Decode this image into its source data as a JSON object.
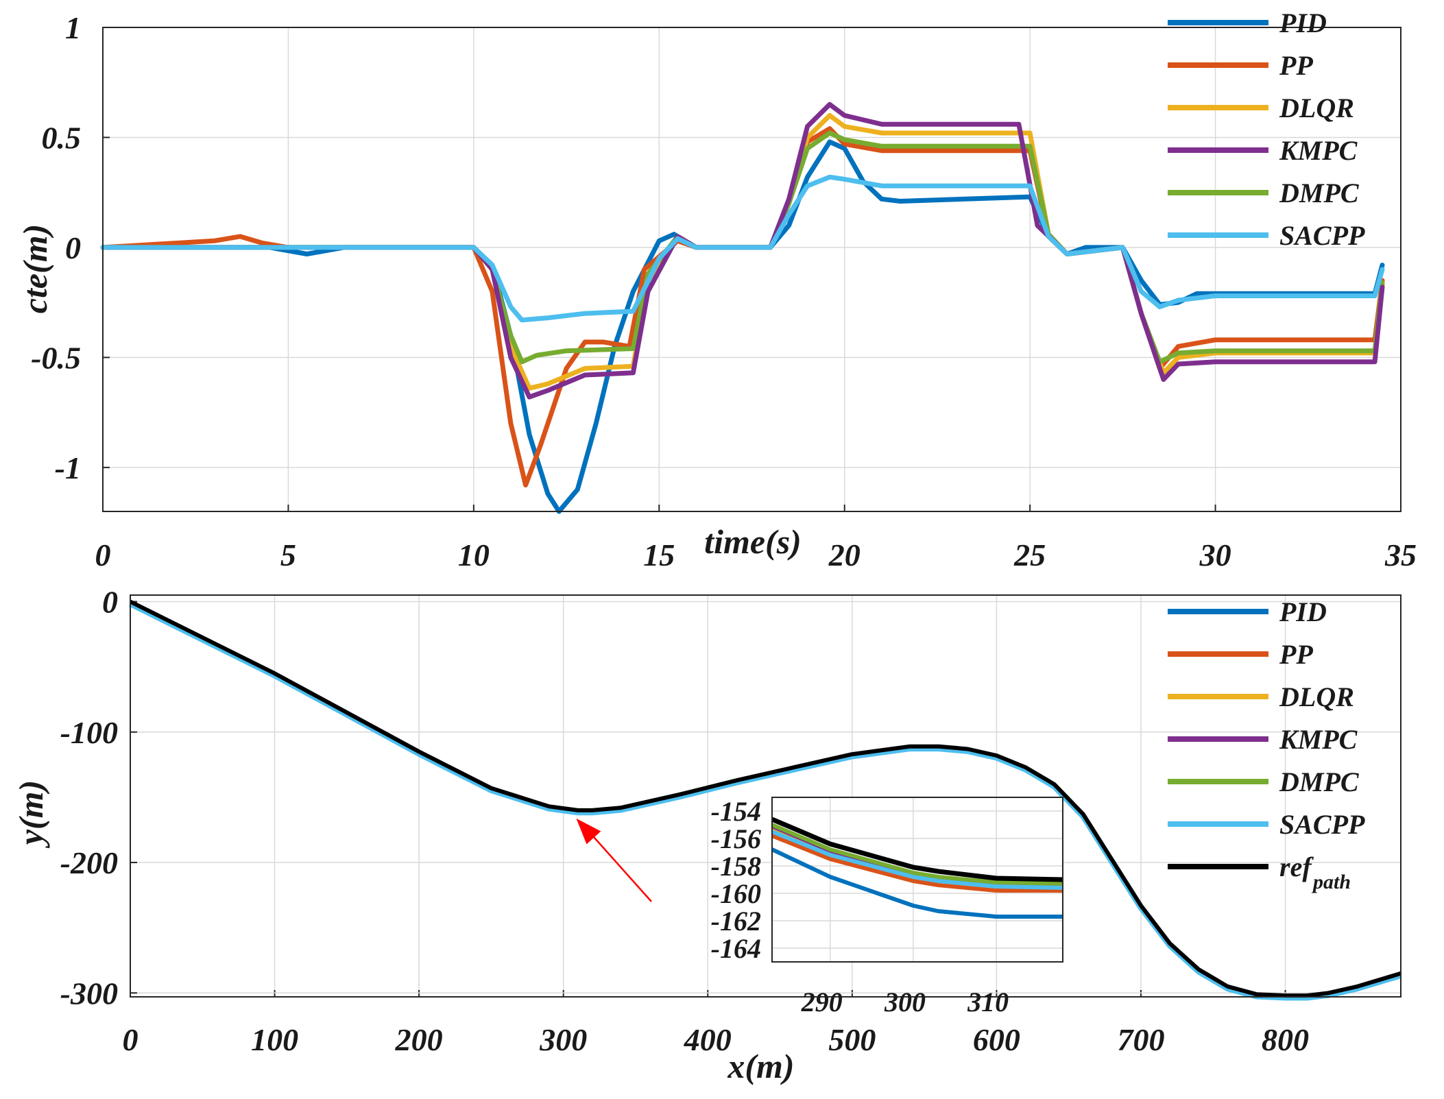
{
  "colors": {
    "PID": "#0072BD",
    "PP": "#D95319",
    "DLQR": "#EDB120",
    "KMPC": "#7E2F8E",
    "DMPC": "#77AC30",
    "SACPP": "#4DBEEE",
    "ref_path": "#000000",
    "arrow": "#FF0000"
  },
  "chart_data": [
    {
      "type": "line",
      "xlabel": "time(s)",
      "ylabel": "cte(m)",
      "xlim": [
        0,
        35
      ],
      "ylim": [
        -1.2,
        1
      ],
      "xticks": [
        "0",
        "5",
        "10",
        "15",
        "20",
        "25",
        "30",
        "35"
      ],
      "yticks": [
        "1",
        "0.5",
        "0",
        "-0.5",
        "-1"
      ],
      "grid": true,
      "legend_position": "top-right",
      "series": [
        {
          "name": "PID",
          "x": [
            0,
            2,
            3.5,
            4.5,
            5.5,
            6.5,
            10,
            10.5,
            11,
            11.5,
            12,
            12.3,
            12.8,
            13.3,
            13.8,
            14.3,
            15,
            15.4,
            16,
            18,
            18.5,
            19,
            19.6,
            20,
            20.5,
            21,
            21.5,
            25,
            25.5,
            26,
            26.5,
            27.5,
            28,
            28.5,
            29,
            29.5,
            30,
            34.3,
            34.5
          ],
          "y": [
            0,
            0,
            0,
            0,
            -0.03,
            0,
            0,
            -0.08,
            -0.4,
            -0.85,
            -1.12,
            -1.2,
            -1.1,
            -0.8,
            -0.45,
            -0.2,
            0.03,
            0.06,
            0,
            0,
            0.1,
            0.32,
            0.48,
            0.45,
            0.3,
            0.22,
            0.21,
            0.23,
            0.05,
            -0.03,
            0,
            0,
            -0.15,
            -0.26,
            -0.25,
            -0.21,
            -0.21,
            -0.21,
            -0.08
          ]
        },
        {
          "name": "PP",
          "x": [
            0,
            3,
            3.7,
            4.3,
            5,
            10,
            10.5,
            11,
            11.4,
            11.8,
            12.5,
            13,
            13.5,
            14.2,
            14.6,
            15.5,
            16,
            18,
            18.5,
            19,
            19.6,
            20,
            21,
            25,
            25.5,
            26,
            27.5,
            28,
            28.5,
            29,
            30,
            34.3,
            34.5
          ],
          "y": [
            0,
            0.03,
            0.05,
            0.02,
            0,
            0,
            -0.2,
            -0.8,
            -1.08,
            -0.9,
            -0.55,
            -0.43,
            -0.43,
            -0.45,
            -0.1,
            0.03,
            0,
            0,
            0.2,
            0.48,
            0.54,
            0.47,
            0.44,
            0.44,
            0.05,
            -0.03,
            0,
            -0.3,
            -0.55,
            -0.45,
            -0.42,
            -0.42,
            -0.15
          ]
        },
        {
          "name": "DLQR",
          "x": [
            0,
            10,
            10.5,
            11,
            11.5,
            12,
            13,
            14.3,
            14.7,
            15.5,
            16,
            18,
            18.5,
            19,
            19.6,
            20,
            21,
            25,
            25.5,
            26,
            27.5,
            28,
            28.6,
            29,
            30,
            34.3,
            34.5
          ],
          "y": [
            0,
            0,
            -0.1,
            -0.45,
            -0.64,
            -0.62,
            -0.55,
            -0.54,
            -0.15,
            0.05,
            0,
            0,
            0.2,
            0.5,
            0.6,
            0.55,
            0.52,
            0.52,
            0.06,
            -0.03,
            0,
            -0.3,
            -0.57,
            -0.5,
            -0.48,
            -0.48,
            -0.17
          ]
        },
        {
          "name": "KMPC",
          "x": [
            0,
            10,
            10.5,
            11,
            11.5,
            12,
            13,
            14.3,
            14.7,
            15.5,
            16,
            18,
            18.5,
            19,
            19.6,
            20,
            21,
            24.7,
            25.2,
            26,
            27.5,
            28,
            28.6,
            29,
            30,
            34.3,
            34.5
          ],
          "y": [
            0,
            0,
            -0.1,
            -0.5,
            -0.68,
            -0.65,
            -0.58,
            -0.57,
            -0.2,
            0.05,
            0,
            0,
            0.22,
            0.55,
            0.65,
            0.6,
            0.56,
            0.56,
            0.1,
            -0.03,
            0,
            -0.3,
            -0.6,
            -0.53,
            -0.52,
            -0.52,
            -0.18
          ]
        },
        {
          "name": "DMPC",
          "x": [
            0,
            10,
            10.5,
            11,
            11.3,
            11.7,
            12.5,
            14.3,
            14.7,
            15.5,
            16,
            18,
            18.5,
            19,
            19.6,
            20,
            21,
            25,
            25.5,
            26,
            27.5,
            28,
            28.5,
            29,
            30,
            34.3,
            34.5
          ],
          "y": [
            0,
            0,
            -0.1,
            -0.4,
            -0.52,
            -0.49,
            -0.47,
            -0.46,
            -0.12,
            0.05,
            0,
            0,
            0.2,
            0.45,
            0.52,
            0.49,
            0.46,
            0.46,
            0.06,
            -0.03,
            0,
            -0.3,
            -0.52,
            -0.48,
            -0.47,
            -0.47,
            -0.16
          ]
        },
        {
          "name": "SACPP",
          "x": [
            0,
            10,
            10.5,
            11,
            11.3,
            12,
            13,
            14.3,
            15,
            15.5,
            16,
            18,
            18.5,
            19,
            19.6,
            20,
            21,
            25,
            25.5,
            26,
            27.5,
            28,
            28.5,
            29,
            30,
            34.3,
            34.5
          ],
          "y": [
            0,
            0,
            -0.08,
            -0.27,
            -0.33,
            -0.32,
            -0.3,
            -0.29,
            -0.05,
            0.04,
            0,
            0,
            0.15,
            0.28,
            0.32,
            0.31,
            0.28,
            0.28,
            0.05,
            -0.03,
            0,
            -0.2,
            -0.27,
            -0.24,
            -0.22,
            -0.22,
            -0.1
          ]
        }
      ]
    },
    {
      "type": "line",
      "xlabel": "x(m)",
      "ylabel": "y(m)",
      "xlim": [
        0,
        880
      ],
      "ylim": [
        -303,
        5
      ],
      "xticks": [
        "0",
        "100",
        "200",
        "300",
        "400",
        "500",
        "600",
        "700",
        "800"
      ],
      "yticks": [
        "0",
        "-100",
        "-200",
        "-300"
      ],
      "grid": true,
      "legend_position": "top-right",
      "legend": [
        "PID",
        "PP",
        "DLQR",
        "KMPC",
        "DMPC",
        "SACPP",
        "ref"
      ],
      "legend_subscript": "path",
      "series": [
        {
          "name": "ref_path",
          "x": [
            0,
            100,
            200,
            250,
            290,
            310,
            320,
            340,
            380,
            420,
            460,
            500,
            540,
            560,
            580,
            600,
            620,
            640,
            660,
            680,
            700,
            720,
            740,
            760,
            780,
            800,
            815,
            830,
            850,
            880
          ],
          "y": [
            0,
            -55,
            -115,
            -143,
            -157,
            -160,
            -160,
            -158,
            -148,
            -137,
            -127,
            -117,
            -111,
            -111,
            -113,
            -118,
            -127,
            -140,
            -163,
            -198,
            -233,
            -262,
            -282,
            -295,
            -301,
            -302,
            -302,
            -300,
            -295,
            -285
          ]
        }
      ],
      "annotation": {
        "type": "arrow",
        "points_to": [
          307,
          -162
        ]
      },
      "inset": {
        "xlim": [
          283,
          318
        ],
        "ylim": [
          -165,
          -153
        ],
        "xticks": [
          "290",
          "300",
          "310"
        ],
        "yticks": [
          "-154",
          "-156",
          "-158",
          "-160",
          "-162",
          "-164"
        ],
        "series": [
          {
            "name": "PID",
            "x": [
              283,
              290,
              300,
              303,
              310,
              318
            ],
            "y": [
              -156.8,
              -158.8,
              -160.9,
              -161.3,
              -161.7,
              -161.7
            ]
          },
          {
            "name": "PP",
            "x": [
              283,
              290,
              300,
              303,
              310,
              318
            ],
            "y": [
              -155.8,
              -157.5,
              -159.1,
              -159.4,
              -159.8,
              -159.8
            ]
          },
          {
            "name": "DLQR",
            "x": [
              283,
              290,
              300,
              303,
              310,
              318
            ],
            "y": [
              -155.3,
              -157.0,
              -158.7,
              -159.0,
              -159.4,
              -159.5
            ]
          },
          {
            "name": "KMPC",
            "x": [
              283,
              290,
              300,
              303,
              310,
              318
            ],
            "y": [
              -155.1,
              -156.9,
              -158.6,
              -158.9,
              -159.3,
              -159.4
            ]
          },
          {
            "name": "DMPC",
            "x": [
              283,
              290,
              300,
              303,
              310,
              318
            ],
            "y": [
              -155.0,
              -156.8,
              -158.5,
              -158.8,
              -159.2,
              -159.3
            ]
          },
          {
            "name": "SACPP",
            "x": [
              283,
              290,
              300,
              303,
              310,
              318
            ],
            "y": [
              -155.5,
              -157.2,
              -158.8,
              -159.1,
              -159.5,
              -159.6
            ]
          },
          {
            "name": "ref_path",
            "x": [
              283,
              290,
              300,
              303,
              310,
              318
            ],
            "y": [
              -154.6,
              -156.4,
              -158.1,
              -158.4,
              -158.9,
              -159.0
            ]
          }
        ]
      }
    }
  ]
}
